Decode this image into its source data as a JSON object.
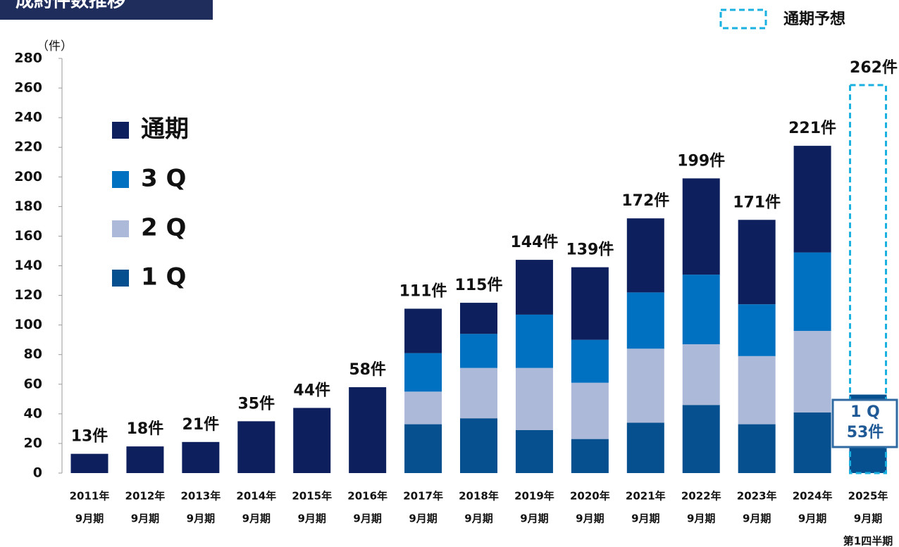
{
  "chart_data": {
    "type": "stacked_bar",
    "title": "成約件数推移",
    "y_unit": "（件）",
    "categories": [
      [
        "2011年",
        "9月期"
      ],
      [
        "2012年",
        "9月期"
      ],
      [
        "2013年",
        "9月期"
      ],
      [
        "2014年",
        "9月期"
      ],
      [
        "2015年",
        "9月期"
      ],
      [
        "2016年",
        "9月期"
      ],
      [
        "2017年",
        "9月期"
      ],
      [
        "2018年",
        "9月期"
      ],
      [
        "2019年",
        "9月期"
      ],
      [
        "2020年",
        "9月期"
      ],
      [
        "2021年",
        "9月期"
      ],
      [
        "2022年",
        "9月期"
      ],
      [
        "2023年",
        "9月期"
      ],
      [
        "2024年",
        "9月期"
      ],
      [
        "2025年",
        "9月期",
        "第1四半期"
      ]
    ],
    "series": [
      {
        "name": "1 Q",
        "color": "#06508f",
        "values": [
          null,
          null,
          null,
          null,
          null,
          null,
          33,
          37,
          29,
          23,
          34,
          46,
          33,
          41,
          53
        ],
        "value_labels": [
          null,
          null,
          null,
          null,
          null,
          null,
          null,
          null,
          null,
          null,
          null,
          null,
          null,
          null,
          "53件"
        ]
      },
      {
        "name": "2 Q",
        "color": "#adb9d9",
        "values": [
          null,
          null,
          null,
          null,
          null,
          null,
          22,
          34,
          42,
          38,
          50,
          41,
          46,
          55,
          null
        ]
      },
      {
        "name": "3 Q",
        "color": "#0070c0",
        "values": [
          null,
          null,
          null,
          null,
          null,
          null,
          26,
          23,
          36,
          29,
          38,
          47,
          35,
          53,
          null
        ]
      },
      {
        "name": "通期",
        "color": "#0d1f5c",
        "values": [
          13,
          18,
          21,
          35,
          44,
          58,
          30,
          21,
          37,
          49,
          50,
          65,
          57,
          72,
          null
        ]
      }
    ],
    "totals": [
      13,
      18,
      21,
      35,
      44,
      58,
      111,
      115,
      144,
      139,
      172,
      199,
      171,
      221,
      null
    ],
    "total_labels": [
      "13件",
      "18件",
      "21件",
      "35件",
      "44件",
      "58件",
      "111件",
      "115件",
      "144件",
      "139件",
      "172件",
      "199件",
      "171件",
      "221件",
      null
    ],
    "forecast": {
      "name": "通期予想",
      "color": "#1ab0e0",
      "values": [
        null,
        null,
        null,
        null,
        null,
        null,
        null,
        null,
        null,
        null,
        null,
        null,
        null,
        null,
        262
      ],
      "value_labels": [
        null,
        null,
        null,
        null,
        null,
        null,
        null,
        null,
        null,
        null,
        null,
        null,
        null,
        null,
        "262件"
      ]
    },
    "ylim": [
      0,
      280
    ],
    "yticks": [
      0,
      20,
      40,
      60,
      80,
      100,
      120,
      140,
      160,
      180,
      200,
      220,
      240,
      260,
      280
    ]
  }
}
